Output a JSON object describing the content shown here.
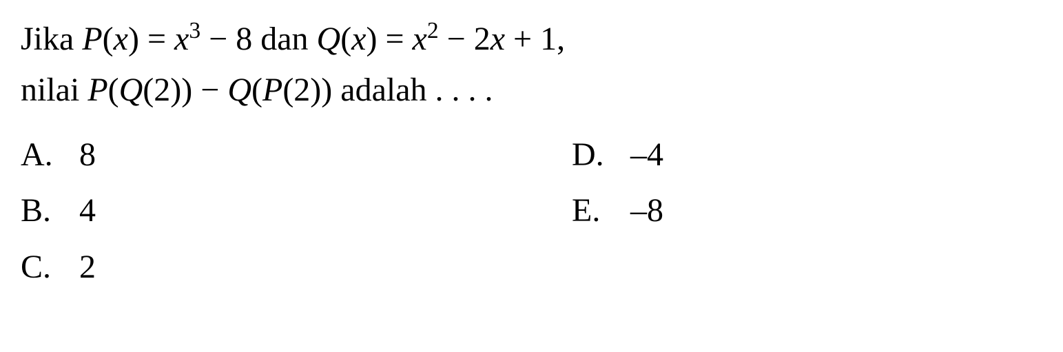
{
  "question": {
    "line1_prefix": "Jika ",
    "p_func": "P",
    "lparen": "(",
    "x_var": "x",
    "rparen": ")",
    "equals": " = ",
    "x_cubed_base": "x",
    "x_cubed_exp": "3",
    "minus8": " − 8",
    "dan": " dan ",
    "q_func": "Q",
    "x_sq_base": "x",
    "x_sq_exp": "2",
    "minus2x": " − 2",
    "plus1": " + 1,",
    "line2_prefix": "nilai ",
    "p_of": "P",
    "q_of_2": "Q",
    "two": "2",
    "minus": " − ",
    "adalah": " adalah . . . ."
  },
  "options": {
    "a_letter": "A.",
    "a_value": "8",
    "b_letter": "B.",
    "b_value": "4",
    "c_letter": "C.",
    "c_value": "2",
    "d_letter": "D.",
    "d_value": "–4",
    "e_letter": "E.",
    "e_value": "–8"
  },
  "styling": {
    "font_family": "Times New Roman",
    "font_size_pt": 36,
    "text_color": "#000000",
    "background_color": "#ffffff",
    "line_height": 1.55,
    "option_line_height": 1.7
  }
}
